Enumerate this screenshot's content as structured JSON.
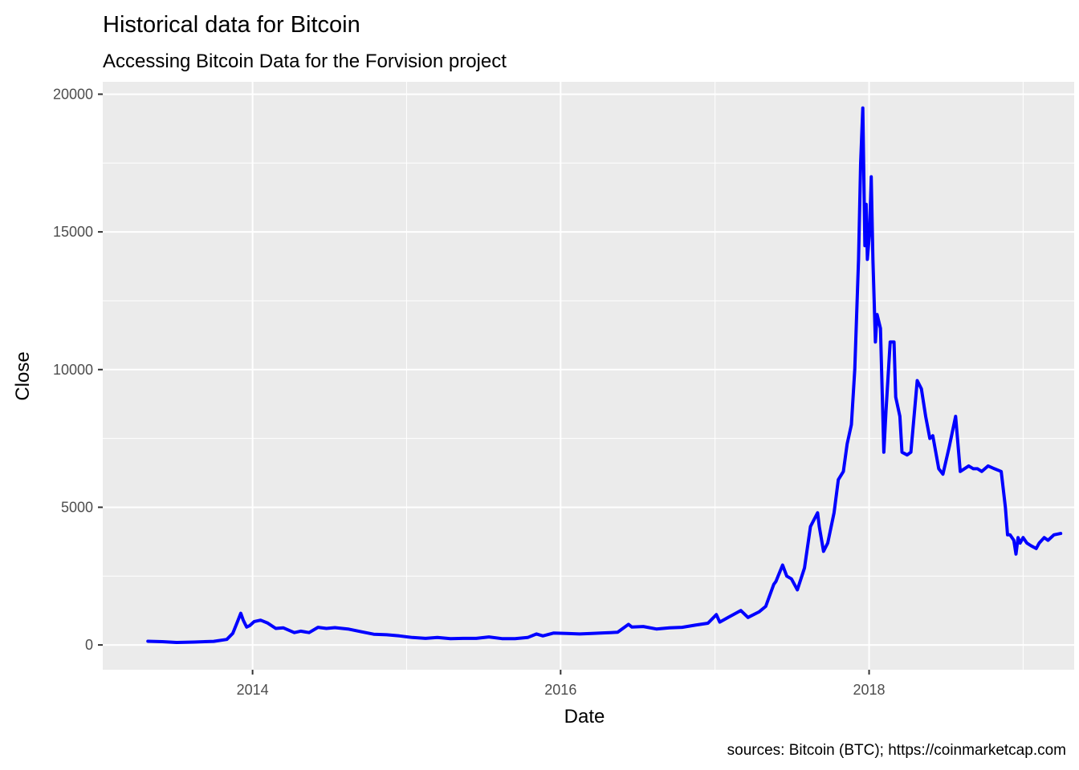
{
  "chart_data": {
    "type": "line",
    "title": "Historical data for Bitcoin",
    "subtitle": "Accessing Bitcoin Data for the Forvision project",
    "caption": "sources: Bitcoin (BTC); https://coinmarketcap.com",
    "xlabel": "Date",
    "ylabel": "Close",
    "xlim": [
      "2013-01-11",
      "2019-05-02"
    ],
    "ylim": [
      -900,
      20450
    ],
    "x_ticks": [
      {
        "value": "2014-01-01",
        "label": "2014"
      },
      {
        "value": "2016-01-01",
        "label": "2016"
      },
      {
        "value": "2018-01-01",
        "label": "2018"
      }
    ],
    "x_minor_ticks": [
      "2015-01-01",
      "2017-01-01",
      "2019-01-01"
    ],
    "y_ticks": [
      {
        "value": 0,
        "label": "0"
      },
      {
        "value": 5000,
        "label": "5000"
      },
      {
        "value": 10000,
        "label": "10000"
      },
      {
        "value": 15000,
        "label": "15000"
      },
      {
        "value": 20000,
        "label": "20000"
      }
    ],
    "y_minor_ticks": [
      2500,
      7500,
      12500,
      17500
    ],
    "grid": true,
    "colors": {
      "line": "#0000ff",
      "panel": "#ebebeb",
      "grid": "#ffffff"
    },
    "series": [
      {
        "x": [
          "2013-04-28",
          "2013-06-01",
          "2013-07-05",
          "2013-08-15",
          "2013-10-01",
          "2013-11-01",
          "2013-11-15",
          "2013-11-25",
          "2013-12-04",
          "2013-12-10",
          "2013-12-18",
          "2013-12-25",
          "2014-01-05",
          "2014-01-20",
          "2014-02-05",
          "2014-02-25",
          "2014-03-15",
          "2014-04-10",
          "2014-04-25",
          "2014-05-15",
          "2014-06-05",
          "2014-06-25",
          "2014-07-15",
          "2014-08-15",
          "2014-09-15",
          "2014-10-15",
          "2014-11-15",
          "2014-12-15",
          "2015-01-15",
          "2015-02-15",
          "2015-03-15",
          "2015-04-15",
          "2015-05-15",
          "2015-06-15",
          "2015-07-15",
          "2015-08-15",
          "2015-09-15",
          "2015-10-15",
          "2015-11-05",
          "2015-11-20",
          "2015-12-15",
          "2016-01-15",
          "2016-02-15",
          "2016-03-15",
          "2016-04-15",
          "2016-05-15",
          "2016-06-10",
          "2016-06-18",
          "2016-07-15",
          "2016-08-15",
          "2016-09-15",
          "2016-10-15",
          "2016-11-15",
          "2016-12-15",
          "2017-01-04",
          "2017-01-12",
          "2017-02-01",
          "2017-02-25",
          "2017-03-03",
          "2017-03-20",
          "2017-04-15",
          "2017-05-01",
          "2017-05-20",
          "2017-05-25",
          "2017-06-10",
          "2017-06-20",
          "2017-07-01",
          "2017-07-15",
          "2017-08-01",
          "2017-08-15",
          "2017-09-01",
          "2017-09-05",
          "2017-09-15",
          "2017-09-25",
          "2017-10-10",
          "2017-10-20",
          "2017-11-01",
          "2017-11-10",
          "2017-11-20",
          "2017-11-28",
          "2017-12-07",
          "2017-12-12",
          "2017-12-17",
          "2017-12-22",
          "2017-12-25",
          "2017-12-28",
          "2018-01-02",
          "2018-01-06",
          "2018-01-10",
          "2018-01-16",
          "2018-01-20",
          "2018-01-28",
          "2018-02-05",
          "2018-02-10",
          "2018-02-20",
          "2018-03-01",
          "2018-03-05",
          "2018-03-15",
          "2018-03-20",
          "2018-04-01",
          "2018-04-10",
          "2018-04-25",
          "2018-05-05",
          "2018-05-15",
          "2018-05-25",
          "2018-06-01",
          "2018-06-15",
          "2018-06-25",
          "2018-07-10",
          "2018-07-25",
          "2018-08-05",
          "2018-08-15",
          "2018-08-25",
          "2018-09-05",
          "2018-09-15",
          "2018-09-25",
          "2018-10-10",
          "2018-10-25",
          "2018-11-10",
          "2018-11-20",
          "2018-11-25",
          "2018-12-01",
          "2018-12-10",
          "2018-12-15",
          "2018-12-20",
          "2018-12-25",
          "2019-01-01",
          "2019-01-10",
          "2019-01-20",
          "2019-02-01",
          "2019-02-08",
          "2019-02-20",
          "2019-03-01",
          "2019-03-15",
          "2019-03-31"
        ],
        "values": [
          135,
          120,
          90,
          105,
          130,
          200,
          420,
          800,
          1150,
          900,
          650,
          700,
          850,
          900,
          800,
          600,
          620,
          450,
          500,
          450,
          640,
          600,
          630,
          580,
          480,
          390,
          370,
          330,
          270,
          240,
          270,
          230,
          240,
          240,
          290,
          230,
          230,
          270,
          400,
          330,
          430,
          420,
          400,
          420,
          440,
          460,
          750,
          650,
          670,
          580,
          620,
          640,
          720,
          790,
          1100,
          830,
          1000,
          1200,
          1250,
          1000,
          1200,
          1400,
          2200,
          2300,
          2900,
          2500,
          2400,
          2000,
          2800,
          4300,
          4800,
          4300,
          3400,
          3700,
          4800,
          6000,
          6300,
          7300,
          8000,
          10000,
          14000,
          17500,
          19500,
          14500,
          16000,
          14000,
          15000,
          17000,
          14000,
          11000,
          12000,
          11500,
          7000,
          8500,
          11000,
          11000,
          9000,
          8300,
          7000,
          6900,
          7000,
          9600,
          9300,
          8300,
          7500,
          7600,
          6400,
          6200,
          7200,
          8300,
          6300,
          6400,
          6500,
          6400,
          6400,
          6300,
          6500,
          6400,
          6300,
          5000,
          4000,
          4000,
          3800,
          3300,
          3900,
          3700,
          3900,
          3700,
          3600,
          3500,
          3700,
          3900,
          3800,
          4000,
          4050
        ]
      }
    ]
  }
}
